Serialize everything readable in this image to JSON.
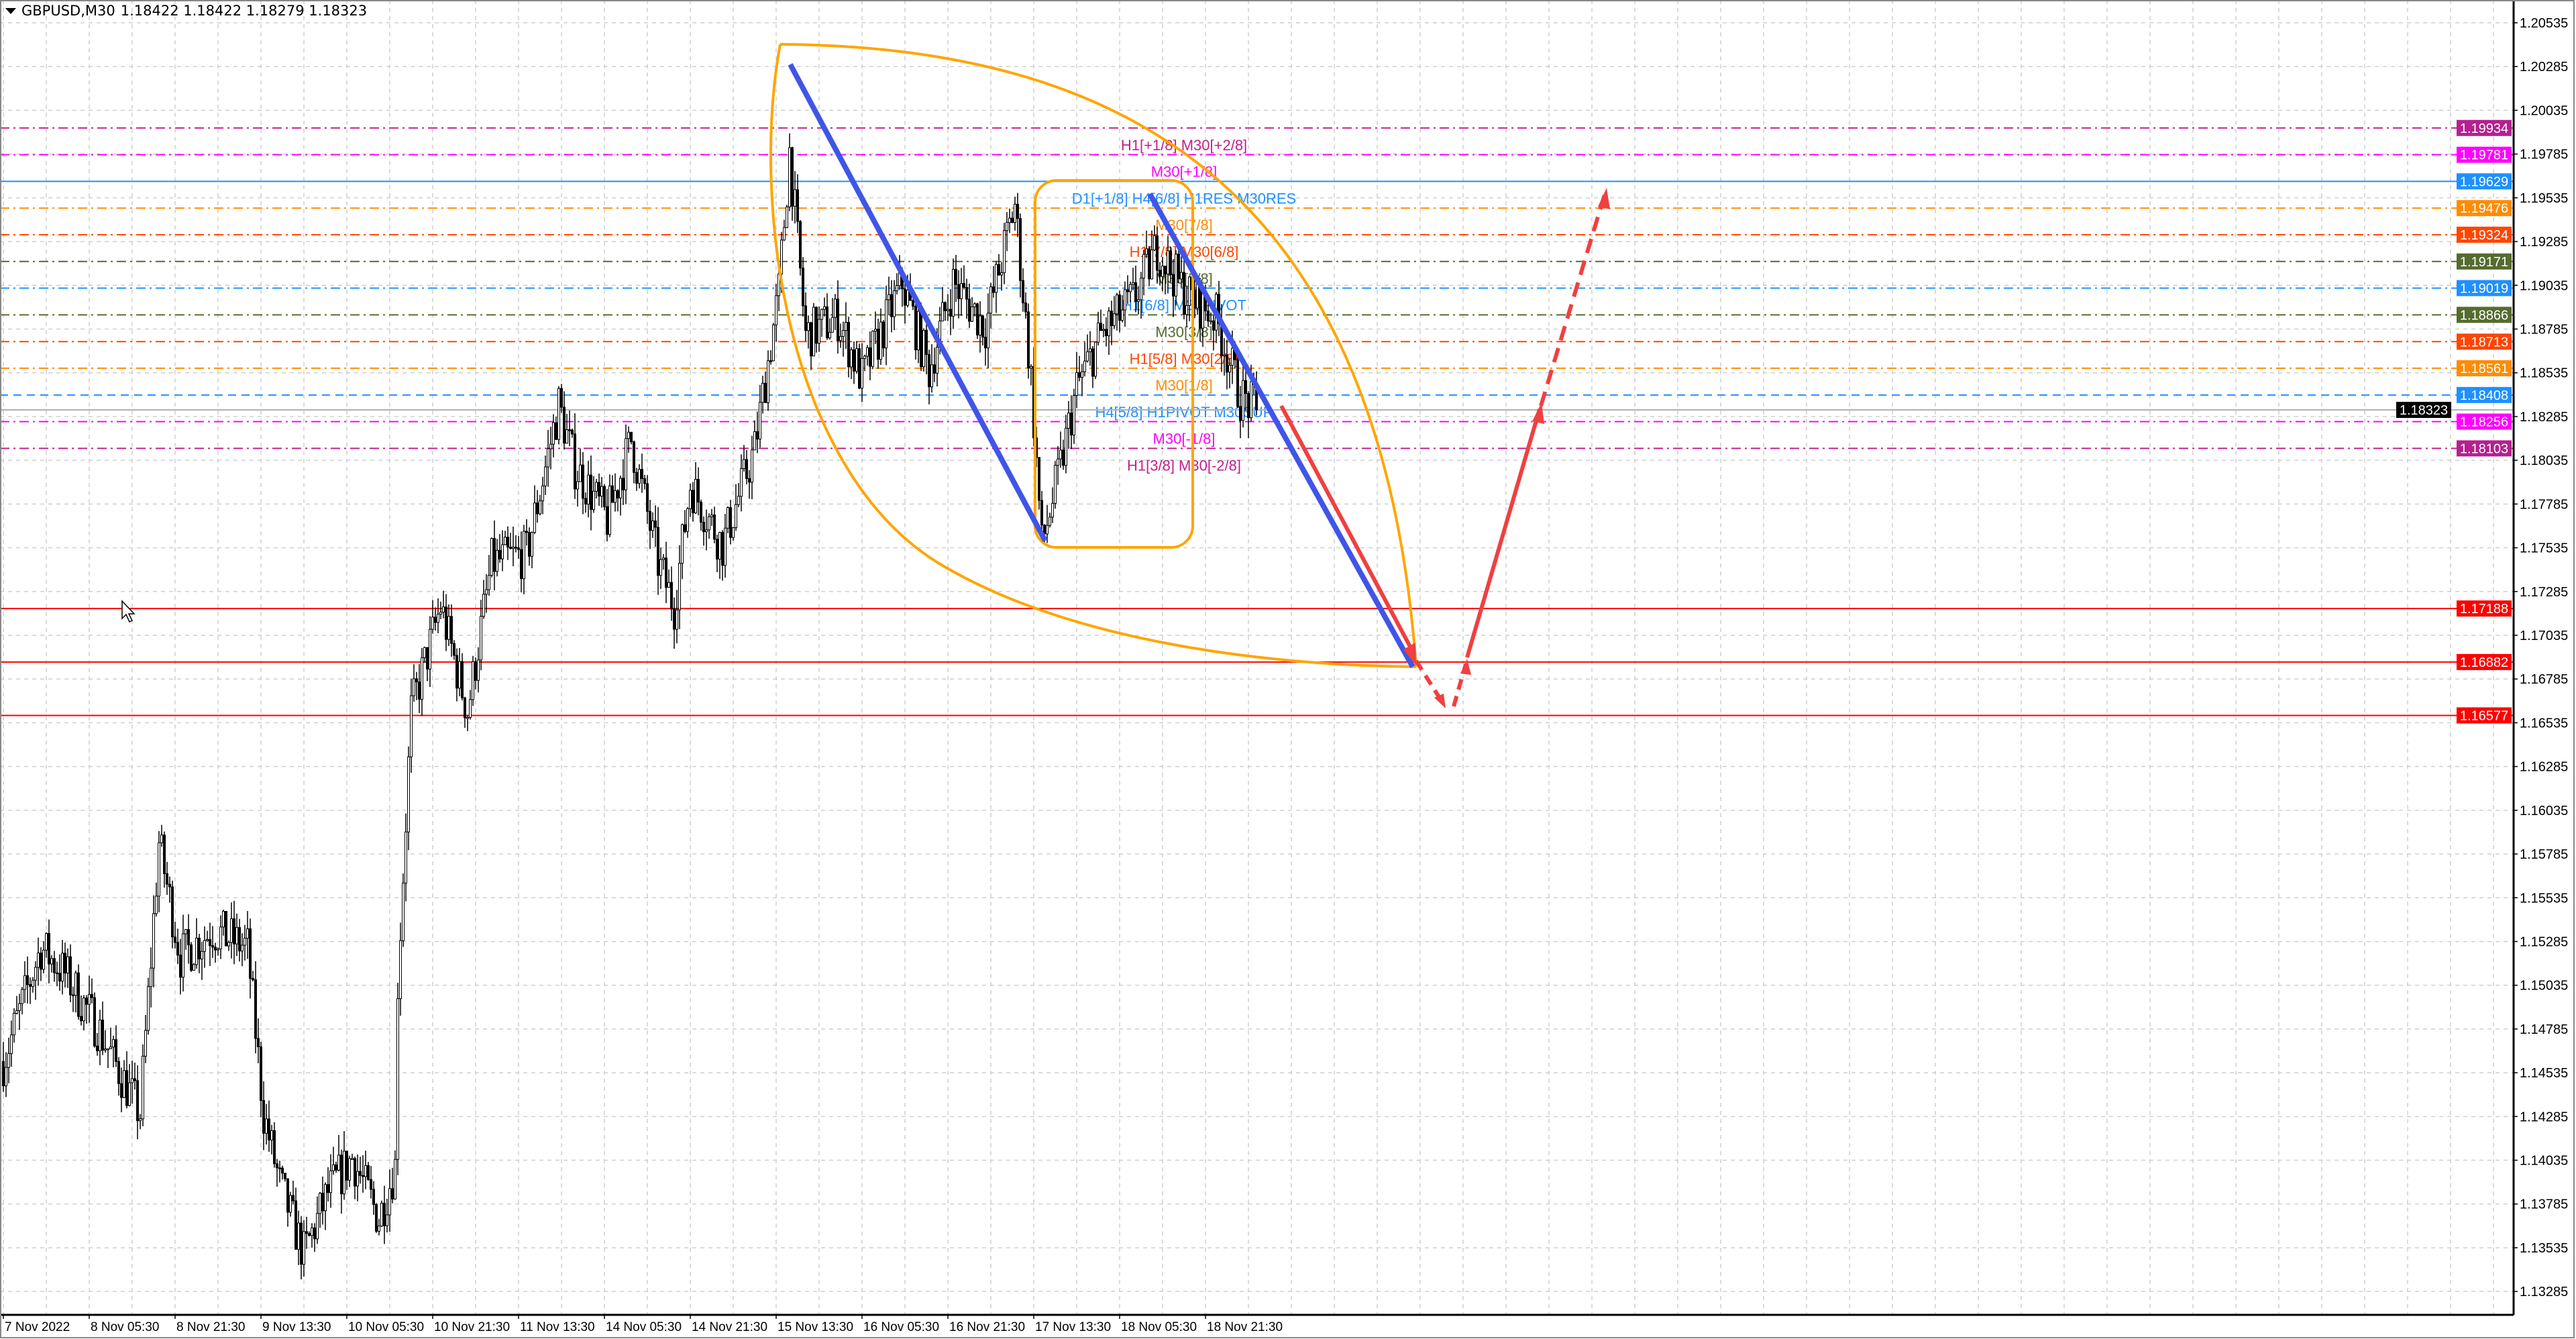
{
  "header": {
    "symbol": "GBPUSD,M30",
    "ohlc": "1.18422 1.18422 1.18279 1.18323"
  },
  "colors": {
    "bull": "#ffffff",
    "bear": "#000000",
    "grid": "#c8c8c8",
    "trend": "#4055e8",
    "shape": "#ffa500",
    "forecast": "#f04040"
  },
  "chart_data": {
    "type": "candlestick",
    "symbol": "GBPUSD",
    "timeframe": "M30",
    "ylim": [
      1.1316,
      1.2066
    ],
    "y_ticks": [
      "1.20535",
      "1.20285",
      "1.20035",
      "1.19785",
      "1.19535",
      "1.19285",
      "1.19035",
      "1.18785",
      "1.18535",
      "1.18285",
      "1.18035",
      "1.17785",
      "1.17535",
      "1.17285",
      "1.17035",
      "1.16785",
      "1.16535",
      "1.16285",
      "1.16035",
      "1.15785",
      "1.15535",
      "1.15285",
      "1.15035",
      "1.14785",
      "1.14535",
      "1.14285",
      "1.14035",
      "1.13785",
      "1.13535",
      "1.13285"
    ],
    "x_ticks": [
      {
        "bar": 0,
        "label": "7 Nov 2022"
      },
      {
        "bar": 32,
        "label": "8 Nov 05:30"
      },
      {
        "bar": 64,
        "label": "8 Nov 21:30"
      },
      {
        "bar": 96,
        "label": "9 Nov 13:30"
      },
      {
        "bar": 128,
        "label": "10 Nov 05:30"
      },
      {
        "bar": 160,
        "label": "10 Nov 21:30"
      },
      {
        "bar": 192,
        "label": "11 Nov 13:30"
      },
      {
        "bar": 224,
        "label": "14 Nov 05:30"
      },
      {
        "bar": 256,
        "label": "14 Nov 21:30"
      },
      {
        "bar": 288,
        "label": "15 Nov 13:30"
      },
      {
        "bar": 320,
        "label": "16 Nov 05:30"
      },
      {
        "bar": 352,
        "label": "16 Nov 21:30"
      },
      {
        "bar": 384,
        "label": "17 Nov 13:30"
      },
      {
        "bar": 416,
        "label": "18 Nov 05:30"
      },
      {
        "bar": 448,
        "label": "18 Nov 21:30"
      }
    ],
    "price_path": [
      [
        0,
        1.146
      ],
      [
        14,
        1.1525
      ],
      [
        23,
        1.151
      ],
      [
        35,
        1.148
      ],
      [
        51,
        1.143
      ],
      [
        58,
        1.1585
      ],
      [
        66,
        1.152
      ],
      [
        78,
        1.1535
      ],
      [
        91,
        1.1525
      ],
      [
        97,
        1.143
      ],
      [
        103,
        1.139
      ],
      [
        112,
        1.135
      ],
      [
        121,
        1.1385
      ],
      [
        130,
        1.1405
      ],
      [
        140,
        1.137
      ],
      [
        146,
        1.14
      ],
      [
        147,
        1.1505
      ],
      [
        152,
        1.166
      ],
      [
        163,
        1.172
      ],
      [
        173,
        1.166
      ],
      [
        182,
        1.1745
      ],
      [
        195,
        1.175
      ],
      [
        207,
        1.1835
      ],
      [
        213,
        1.18
      ],
      [
        225,
        1.177
      ],
      [
        234,
        1.1815
      ],
      [
        244,
        1.1745
      ],
      [
        250,
        1.172
      ],
      [
        256,
        1.179
      ],
      [
        268,
        1.1755
      ],
      [
        280,
        1.181
      ],
      [
        289,
        1.19
      ],
      [
        293,
        1.198
      ],
      [
        299,
        1.1875
      ],
      [
        311,
        1.1885
      ],
      [
        320,
        1.185
      ],
      [
        335,
        1.1905
      ],
      [
        345,
        1.1855
      ],
      [
        354,
        1.1905
      ],
      [
        366,
        1.188
      ],
      [
        377,
        1.195
      ],
      [
        383,
        1.185
      ],
      [
        387,
        1.1755
      ],
      [
        394,
        1.18
      ],
      [
        400,
        1.1845
      ],
      [
        409,
        1.1875
      ],
      [
        421,
        1.1895
      ],
      [
        430,
        1.1925
      ],
      [
        440,
        1.19
      ],
      [
        452,
        1.1885
      ],
      [
        461,
        1.184
      ],
      [
        467,
        1.18323
      ]
    ],
    "current_price": "1.18323",
    "levels": [
      {
        "price": "1.19934",
        "label": "H1[+1/8] M30[+2/8]",
        "color": "#c0208f",
        "style": "dashdot"
      },
      {
        "price": "1.19781",
        "label": "M30[+1/8]",
        "color": "#ff00ff",
        "style": "dashdot"
      },
      {
        "price": "1.19629",
        "label": "D1[+1/8] H4[6/8] H1RES M30RES",
        "color": "#1e90ff",
        "style": "solid"
      },
      {
        "price": "1.19476",
        "label": "M30[7/8]",
        "color": "#ff8c00",
        "style": "dashdot"
      },
      {
        "price": "1.19324",
        "label": "H1[7/8] M30[6/8]",
        "color": "#ff4500",
        "style": "dashdot"
      },
      {
        "price": "1.19171",
        "label": "M30[5/8]",
        "color": "#556b2f",
        "style": "dashdot"
      },
      {
        "price": "1.19019",
        "label": "H1[6/8] M30PIVOT",
        "color": "#1e90ff",
        "style": "dashdot"
      },
      {
        "price": "1.18866",
        "label": "M30[3/8]",
        "color": "#556b2f",
        "style": "dashdot"
      },
      {
        "price": "1.18713",
        "label": "H1[5/8] M30[2/8]",
        "color": "#ff4500",
        "style": "dashdot"
      },
      {
        "price": "1.18561",
        "label": "M30[1/8]",
        "color": "#ff8c00",
        "style": "dashdot"
      },
      {
        "price": "1.18408",
        "label": "H4[5/8] H1PIVOT M30SUP",
        "color": "#1e90ff",
        "style": "dashed"
      },
      {
        "price": "1.18256",
        "label": "M30[-1/8]",
        "color": "#ff00ff",
        "style": "dashdot"
      },
      {
        "price": "1.18103",
        "label": "H1[3/8] M30[-2/8]",
        "color": "#c0208f",
        "style": "dashdot"
      },
      {
        "price": "1.17188",
        "label": "",
        "color": "#ff0000",
        "style": "solid"
      },
      {
        "price": "1.16882",
        "label": "",
        "color": "#ff0000",
        "style": "solid"
      },
      {
        "price": "1.16577",
        "label": "",
        "color": "#ff0000",
        "style": "solid"
      }
    ]
  }
}
